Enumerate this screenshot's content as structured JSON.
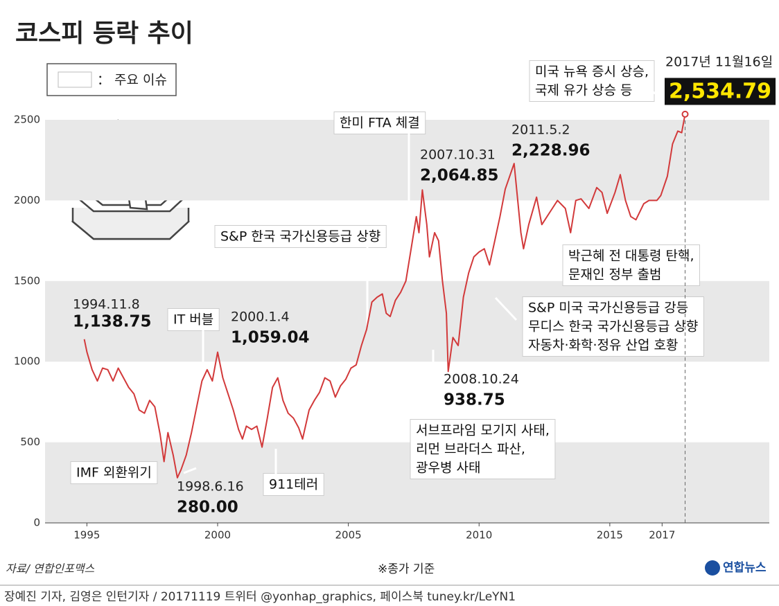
{
  "chart_data": {
    "type": "line",
    "title": "코스피 등락 추이",
    "legend_text": "： 주요 이슈",
    "source": "자료/ 연합인포맥스",
    "note": "※종가 기준",
    "logo": "연합뉴스",
    "credit": "장예진 기자, 김영은 인턴기자 / 20171119  트위터 @yonhap_graphics, 페이스북 tuney.kr/LeYN1",
    "color": "#d2393a",
    "grid": true,
    "xlim": [
      1993.4,
      2021.1
    ],
    "xticks": [
      1995,
      2000,
      2005,
      2010,
      2015,
      2017
    ],
    "ylim": [
      0,
      2500
    ],
    "yticks": [
      0,
      500,
      1000,
      1500,
      2000,
      2500
    ],
    "series": [
      {
        "name": "코스피",
        "x": [
          1994.9,
          1995.0,
          1995.2,
          1995.4,
          1995.6,
          1995.8,
          1996.0,
          1996.2,
          1996.4,
          1996.6,
          1996.8,
          1997.0,
          1997.2,
          1997.4,
          1997.6,
          1997.8,
          1997.95,
          1998.1,
          1998.3,
          1998.46,
          1998.6,
          1998.8,
          1999.0,
          1999.2,
          1999.4,
          1999.6,
          1999.8,
          2000.0,
          2000.2,
          2000.4,
          2000.6,
          2000.8,
          2000.95,
          2001.1,
          2001.3,
          2001.5,
          2001.7,
          2001.9,
          2002.1,
          2002.3,
          2002.5,
          2002.7,
          2002.9,
          2003.1,
          2003.25,
          2003.5,
          2003.7,
          2003.9,
          2004.1,
          2004.3,
          2004.5,
          2004.7,
          2004.9,
          2005.1,
          2005.3,
          2005.5,
          2005.7,
          2005.9,
          2006.1,
          2006.3,
          2006.45,
          2006.6,
          2006.8,
          2007.0,
          2007.2,
          2007.4,
          2007.6,
          2007.7,
          2007.83,
          2008.0,
          2008.1,
          2008.3,
          2008.45,
          2008.6,
          2008.75,
          2008.82,
          2009.0,
          2009.2,
          2009.4,
          2009.6,
          2009.8,
          2010.0,
          2010.2,
          2010.4,
          2010.6,
          2010.8,
          2011.0,
          2011.34,
          2011.6,
          2011.7,
          2011.9,
          2012.2,
          2012.4,
          2012.6,
          2012.8,
          2013.0,
          2013.3,
          2013.5,
          2013.7,
          2013.9,
          2014.2,
          2014.5,
          2014.7,
          2014.9,
          2015.2,
          2015.4,
          2015.6,
          2015.8,
          2016.0,
          2016.3,
          2016.5,
          2016.8,
          2016.95,
          2017.2,
          2017.4,
          2017.6,
          2017.75,
          2017.88
        ],
        "values": [
          1139,
          1060,
          950,
          880,
          960,
          950,
          880,
          960,
          900,
          840,
          800,
          700,
          680,
          760,
          720,
          550,
          380,
          560,
          420,
          280,
          330,
          420,
          560,
          720,
          880,
          950,
          880,
          1059,
          900,
          800,
          700,
          580,
          520,
          600,
          580,
          600,
          470,
          650,
          840,
          900,
          760,
          680,
          650,
          590,
          520,
          700,
          760,
          810,
          900,
          880,
          780,
          850,
          890,
          960,
          980,
          1100,
          1200,
          1370,
          1400,
          1420,
          1300,
          1280,
          1380,
          1430,
          1500,
          1700,
          1900,
          1800,
          2065,
          1850,
          1650,
          1800,
          1750,
          1500,
          1300,
          939,
          1150,
          1100,
          1400,
          1550,
          1650,
          1680,
          1700,
          1600,
          1750,
          1900,
          2070,
          2229,
          1800,
          1700,
          1850,
          2020,
          1850,
          1900,
          1950,
          2000,
          1950,
          1800,
          2000,
          2010,
          1950,
          2080,
          2050,
          1920,
          2050,
          2160,
          2000,
          1900,
          1880,
          1980,
          2000,
          2000,
          2030,
          2150,
          2350,
          2430,
          2420,
          2535
        ]
      }
    ],
    "annotations": [
      {
        "date": "1994.11.8",
        "value": 1138.75,
        "value_label": "1,138.75"
      },
      {
        "date": "1998.6.16",
        "value": 280.0,
        "value_label": "280.00"
      },
      {
        "date": "2000.1.4",
        "value": 1059.04,
        "value_label": "1,059.04"
      },
      {
        "date": "2007.10.31",
        "value": 2064.85,
        "value_label": "2,064.85"
      },
      {
        "date": "2008.10.24",
        "value": 938.75,
        "value_label": "938.75"
      },
      {
        "date": "2011.5.2",
        "value": 2228.96,
        "value_label": "2,228.96"
      },
      {
        "date": "2017년 11월16일",
        "value": 2534.79,
        "value_label": "2,534.79"
      }
    ],
    "events": [
      {
        "lines": [
          "IMF 외환위기"
        ]
      },
      {
        "lines": [
          "IT 버블"
        ]
      },
      {
        "lines": [
          "911테러"
        ]
      },
      {
        "lines": [
          "S&P 한국 국가신용등급 상향"
        ]
      },
      {
        "lines": [
          "한미 FTA 체결"
        ]
      },
      {
        "lines": [
          "서브프라임 모기지 사태,",
          "리먼 브라더스 파산,",
          "광우병 사태"
        ]
      },
      {
        "lines": [
          "박근혜 전 대통령 탄핵,",
          "문재인 정부 출범"
        ]
      },
      {
        "lines": [
          "S&P 미국 국가신용등급 강등",
          "무디스 한국 국가신용등급 상향",
          "자동차·화학·정유 산업 호황"
        ]
      },
      {
        "lines": [
          "미국 뉴욕 증시 상승,",
          "국제 유가 상승 등"
        ]
      }
    ]
  }
}
